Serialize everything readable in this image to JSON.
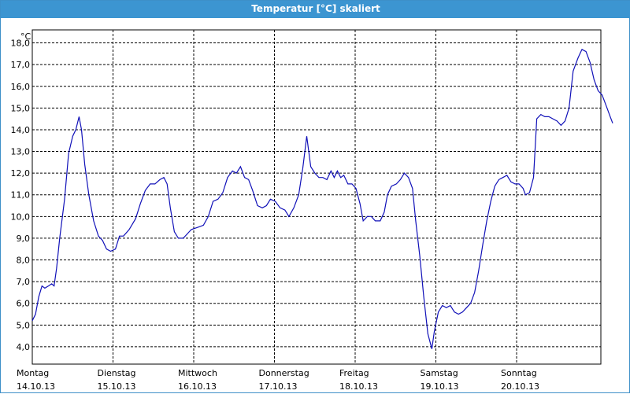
{
  "window": {
    "title": "Temperatur [°C] skaliert"
  },
  "colors": {
    "titlebar": "#3c95d1",
    "line": "#1010b8",
    "grid": "#000000"
  },
  "chart_data": {
    "type": "line",
    "title": "Temperatur [°C] skaliert",
    "ylabel": "°C",
    "ylim": [
      3.2,
      18.6
    ],
    "yticks": [
      4,
      5,
      6,
      7,
      8,
      9,
      10,
      11,
      12,
      13,
      14,
      15,
      16,
      17,
      18
    ],
    "ytick_labels": [
      "4,0",
      "5,0",
      "6,0",
      "7,0",
      "8,0",
      "9,0",
      "10,0",
      "11,0",
      "12,0",
      "13,0",
      "14,0",
      "15,0",
      "16,0",
      "17,0",
      "18,0"
    ],
    "xlim": [
      0,
      7.13
    ],
    "grid": true,
    "days": [
      {
        "name": "Montag",
        "date": "14.10.13"
      },
      {
        "name": "Dienstag",
        "date": "15.10.13"
      },
      {
        "name": "Mittwoch",
        "date": "16.10.13"
      },
      {
        "name": "Donnerstag",
        "date": "17.10.13"
      },
      {
        "name": "Freitag",
        "date": "18.10.13"
      },
      {
        "name": "Samstag",
        "date": "19.10.13"
      },
      {
        "name": "Sonntag",
        "date": "20.10.13"
      }
    ],
    "series": [
      {
        "points": [
          [
            0.0,
            5.2
          ],
          [
            0.04,
            5.5
          ],
          [
            0.08,
            6.3
          ],
          [
            0.12,
            6.8
          ],
          [
            0.155,
            6.7
          ],
          [
            0.2,
            6.8
          ],
          [
            0.24,
            6.9
          ],
          [
            0.27,
            6.8
          ],
          [
            0.3,
            7.6
          ],
          [
            0.34,
            9.0
          ],
          [
            0.4,
            10.8
          ],
          [
            0.45,
            12.9
          ],
          [
            0.5,
            13.7
          ],
          [
            0.54,
            14.0
          ],
          [
            0.58,
            14.6
          ],
          [
            0.61,
            14.0
          ],
          [
            0.65,
            12.4
          ],
          [
            0.7,
            11.0
          ],
          [
            0.76,
            9.8
          ],
          [
            0.82,
            9.1
          ],
          [
            0.87,
            8.9
          ],
          [
            0.92,
            8.5
          ],
          [
            0.97,
            8.4
          ],
          [
            1.03,
            8.5
          ],
          [
            1.08,
            9.1
          ],
          [
            1.13,
            9.1
          ],
          [
            1.2,
            9.4
          ],
          [
            1.28,
            9.9
          ],
          [
            1.34,
            10.6
          ],
          [
            1.4,
            11.2
          ],
          [
            1.46,
            11.5
          ],
          [
            1.52,
            11.5
          ],
          [
            1.58,
            11.7
          ],
          [
            1.63,
            11.8
          ],
          [
            1.67,
            11.5
          ],
          [
            1.71,
            10.4
          ],
          [
            1.76,
            9.3
          ],
          [
            1.81,
            9.0
          ],
          [
            1.87,
            9.0
          ],
          [
            1.92,
            9.2
          ],
          [
            1.97,
            9.4
          ],
          [
            2.05,
            9.5
          ],
          [
            2.12,
            9.6
          ],
          [
            2.18,
            10.0
          ],
          [
            2.24,
            10.7
          ],
          [
            2.3,
            10.8
          ],
          [
            2.36,
            11.1
          ],
          [
            2.42,
            11.8
          ],
          [
            2.48,
            12.1
          ],
          [
            2.53,
            12.0
          ],
          [
            2.58,
            12.3
          ],
          [
            2.63,
            11.8
          ],
          [
            2.68,
            11.7
          ],
          [
            2.73,
            11.2
          ],
          [
            2.79,
            10.5
          ],
          [
            2.85,
            10.4
          ],
          [
            2.9,
            10.5
          ],
          [
            2.95,
            10.8
          ],
          [
            3.01,
            10.7
          ],
          [
            3.07,
            10.4
          ],
          [
            3.13,
            10.3
          ],
          [
            3.18,
            10.0
          ],
          [
            3.24,
            10.4
          ],
          [
            3.3,
            11.0
          ],
          [
            3.35,
            12.2
          ],
          [
            3.4,
            13.7
          ],
          [
            3.45,
            12.3
          ],
          [
            3.5,
            12.0
          ],
          [
            3.55,
            11.8
          ],
          [
            3.6,
            11.8
          ],
          [
            3.65,
            11.7
          ],
          [
            3.7,
            12.1
          ],
          [
            3.74,
            11.8
          ],
          [
            3.78,
            12.1
          ],
          [
            3.82,
            11.8
          ],
          [
            3.86,
            11.9
          ],
          [
            3.91,
            11.5
          ],
          [
            3.96,
            11.5
          ],
          [
            4.01,
            11.3
          ],
          [
            4.06,
            10.6
          ],
          [
            4.1,
            9.8
          ],
          [
            4.15,
            10.0
          ],
          [
            4.2,
            10.0
          ],
          [
            4.25,
            9.8
          ],
          [
            4.31,
            9.8
          ],
          [
            4.36,
            10.2
          ],
          [
            4.4,
            11.0
          ],
          [
            4.45,
            11.4
          ],
          [
            4.51,
            11.5
          ],
          [
            4.56,
            11.7
          ],
          [
            4.61,
            12.0
          ],
          [
            4.66,
            11.8
          ],
          [
            4.71,
            11.3
          ],
          [
            4.75,
            9.8
          ],
          [
            4.8,
            8.2
          ],
          [
            4.85,
            6.3
          ],
          [
            4.9,
            4.6
          ],
          [
            4.95,
            3.9
          ],
          [
            4.98,
            4.7
          ],
          [
            5.03,
            5.6
          ],
          [
            5.08,
            5.9
          ],
          [
            5.13,
            5.8
          ],
          [
            5.18,
            5.9
          ],
          [
            5.23,
            5.6
          ],
          [
            5.28,
            5.5
          ],
          [
            5.33,
            5.6
          ],
          [
            5.38,
            5.8
          ],
          [
            5.43,
            6.0
          ],
          [
            5.48,
            6.5
          ],
          [
            5.53,
            7.5
          ],
          [
            5.58,
            8.7
          ],
          [
            5.63,
            9.8
          ],
          [
            5.68,
            10.7
          ],
          [
            5.73,
            11.4
          ],
          [
            5.78,
            11.7
          ],
          [
            5.83,
            11.8
          ],
          [
            5.88,
            11.9
          ],
          [
            5.93,
            11.6
          ],
          [
            5.98,
            11.5
          ],
          [
            6.03,
            11.5
          ],
          [
            6.08,
            11.3
          ],
          [
            6.11,
            11.0
          ],
          [
            6.16,
            11.1
          ],
          [
            6.21,
            11.8
          ],
          [
            6.25,
            14.5
          ],
          [
            6.3,
            14.7
          ],
          [
            6.35,
            14.6
          ],
          [
            6.4,
            14.6
          ],
          [
            6.45,
            14.5
          ],
          [
            6.5,
            14.4
          ],
          [
            6.55,
            14.2
          ],
          [
            6.6,
            14.4
          ],
          [
            6.65,
            15.0
          ],
          [
            6.7,
            16.7
          ],
          [
            6.76,
            17.3
          ],
          [
            6.81,
            17.7
          ],
          [
            6.86,
            17.6
          ],
          [
            6.91,
            17.1
          ],
          [
            6.96,
            16.3
          ],
          [
            7.01,
            15.8
          ],
          [
            7.06,
            15.6
          ],
          [
            7.11,
            15.1
          ],
          [
            7.16,
            14.6
          ],
          [
            7.19,
            14.3
          ]
        ]
      }
    ]
  }
}
